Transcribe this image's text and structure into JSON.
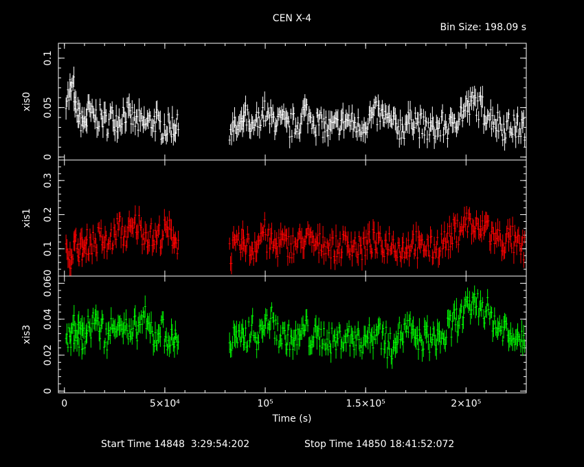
{
  "chart_data": {
    "type": "scatter",
    "title": "CEN X-4",
    "bin_size": "Bin Size: 198.09 s",
    "xlabel": "Time (s)",
    "xlim": [
      -3000,
      230000
    ],
    "x_ticks": [
      {
        "value": 0,
        "label": "0"
      },
      {
        "value": 50000,
        "label": "5×10⁴"
      },
      {
        "value": 100000,
        "label": "10⁵"
      },
      {
        "value": 150000,
        "label": "1.5×10⁵"
      },
      {
        "value": 200000,
        "label": "2×10⁵"
      }
    ],
    "footer": {
      "start": "Start Time 14848  3:29:54:202",
      "stop": "Stop Time 14850 18:41:52:072"
    },
    "observing_gap": [
      57000,
      82000
    ],
    "panels": [
      {
        "ylabel": "xis0",
        "color": "#ffffff",
        "ylim": [
          -0.003,
          0.115
        ],
        "y_ticks": [
          {
            "value": 0,
            "label": "0"
          },
          {
            "value": 0.05,
            "label": "0.05"
          },
          {
            "value": 0.1,
            "label": "0.1"
          }
        ],
        "bins": [
          [
            2000,
            0.062
          ],
          [
            4000,
            0.07
          ],
          [
            6000,
            0.045
          ],
          [
            8000,
            0.038
          ],
          [
            10000,
            0.035
          ],
          [
            12000,
            0.045
          ],
          [
            15000,
            0.04
          ],
          [
            18000,
            0.04
          ],
          [
            21000,
            0.035
          ],
          [
            24000,
            0.04
          ],
          [
            27000,
            0.038
          ],
          [
            30000,
            0.045
          ],
          [
            33000,
            0.04
          ],
          [
            36000,
            0.035
          ],
          [
            39000,
            0.033
          ],
          [
            42000,
            0.035
          ],
          [
            45000,
            0.037
          ],
          [
            48000,
            0.03
          ],
          [
            51000,
            0.03
          ],
          [
            54000,
            0.032
          ],
          [
            56000,
            0.03
          ],
          [
            82000,
            0.03
          ],
          [
            85000,
            0.028
          ],
          [
            88000,
            0.03
          ],
          [
            90000,
            0.04
          ],
          [
            93000,
            0.025
          ],
          [
            96000,
            0.035
          ],
          [
            99000,
            0.045
          ],
          [
            102000,
            0.038
          ],
          [
            105000,
            0.038
          ],
          [
            108000,
            0.035
          ],
          [
            111000,
            0.03
          ],
          [
            114000,
            0.032
          ],
          [
            117000,
            0.035
          ],
          [
            120000,
            0.045
          ],
          [
            123000,
            0.04
          ],
          [
            126000,
            0.035
          ],
          [
            129000,
            0.032
          ],
          [
            132000,
            0.028
          ],
          [
            135000,
            0.03
          ],
          [
            138000,
            0.035
          ],
          [
            141000,
            0.037
          ],
          [
            144000,
            0.033
          ],
          [
            147000,
            0.03
          ],
          [
            150000,
            0.035
          ],
          [
            153000,
            0.04
          ],
          [
            156000,
            0.043
          ],
          [
            159000,
            0.04
          ],
          [
            162000,
            0.035
          ],
          [
            165000,
            0.032
          ],
          [
            168000,
            0.03
          ],
          [
            171000,
            0.035
          ],
          [
            174000,
            0.04
          ],
          [
            177000,
            0.032
          ],
          [
            180000,
            0.028
          ],
          [
            183000,
            0.028
          ],
          [
            186000,
            0.03
          ],
          [
            189000,
            0.032
          ],
          [
            192000,
            0.03
          ],
          [
            195000,
            0.04
          ],
          [
            198000,
            0.045
          ],
          [
            201000,
            0.05
          ],
          [
            204000,
            0.055
          ],
          [
            207000,
            0.05
          ],
          [
            210000,
            0.045
          ],
          [
            213000,
            0.04
          ],
          [
            216000,
            0.035
          ],
          [
            219000,
            0.03
          ],
          [
            222000,
            0.032
          ],
          [
            225000,
            0.03
          ],
          [
            228000,
            0.03
          ]
        ]
      },
      {
        "ylabel": "xis1",
        "color": "#ff0000",
        "ylim": [
          0.02,
          0.36
        ],
        "y_ticks": [
          {
            "value": 0.1,
            "label": "0.1"
          },
          {
            "value": 0.2,
            "label": "0.2"
          },
          {
            "value": 0.3,
            "label": "0.3"
          }
        ],
        "bins": [
          [
            2000,
            0.08
          ],
          [
            4000,
            0.1
          ],
          [
            6000,
            0.11
          ],
          [
            8000,
            0.1
          ],
          [
            10000,
            0.1
          ],
          [
            12000,
            0.12
          ],
          [
            15000,
            0.12
          ],
          [
            18000,
            0.13
          ],
          [
            21000,
            0.11
          ],
          [
            24000,
            0.13
          ],
          [
            27000,
            0.16
          ],
          [
            30000,
            0.14
          ],
          [
            33000,
            0.15
          ],
          [
            36000,
            0.17
          ],
          [
            39000,
            0.15
          ],
          [
            42000,
            0.14
          ],
          [
            45000,
            0.13
          ],
          [
            48000,
            0.14
          ],
          [
            51000,
            0.15
          ],
          [
            54000,
            0.14
          ],
          [
            56000,
            0.12
          ],
          [
            82000,
            0.09
          ],
          [
            85000,
            0.1
          ],
          [
            88000,
            0.11
          ],
          [
            90000,
            0.12
          ],
          [
            93000,
            0.1
          ],
          [
            96000,
            0.12
          ],
          [
            99000,
            0.15
          ],
          [
            102000,
            0.12
          ],
          [
            105000,
            0.11
          ],
          [
            108000,
            0.12
          ],
          [
            111000,
            0.11
          ],
          [
            114000,
            0.11
          ],
          [
            117000,
            0.12
          ],
          [
            120000,
            0.13
          ],
          [
            123000,
            0.12
          ],
          [
            126000,
            0.11
          ],
          [
            129000,
            0.12
          ],
          [
            132000,
            0.11
          ],
          [
            135000,
            0.1
          ],
          [
            138000,
            0.11
          ],
          [
            141000,
            0.12
          ],
          [
            144000,
            0.11
          ],
          [
            147000,
            0.1
          ],
          [
            150000,
            0.11
          ],
          [
            153000,
            0.12
          ],
          [
            156000,
            0.11
          ],
          [
            159000,
            0.11
          ],
          [
            162000,
            0.12
          ],
          [
            165000,
            0.11
          ],
          [
            168000,
            0.1
          ],
          [
            171000,
            0.11
          ],
          [
            174000,
            0.12
          ],
          [
            177000,
            0.1
          ],
          [
            180000,
            0.11
          ],
          [
            183000,
            0.1
          ],
          [
            186000,
            0.11
          ],
          [
            189000,
            0.12
          ],
          [
            192000,
            0.13
          ],
          [
            195000,
            0.15
          ],
          [
            198000,
            0.17
          ],
          [
            201000,
            0.18
          ],
          [
            204000,
            0.16
          ],
          [
            207000,
            0.15
          ],
          [
            210000,
            0.17
          ],
          [
            213000,
            0.14
          ],
          [
            216000,
            0.13
          ],
          [
            219000,
            0.12
          ],
          [
            222000,
            0.13
          ],
          [
            225000,
            0.11
          ],
          [
            228000,
            0.1
          ]
        ]
      },
      {
        "ylabel": "xis3",
        "color": "#00ff00",
        "ylim": [
          -0.001,
          0.064
        ],
        "y_ticks": [
          {
            "value": 0,
            "label": "0"
          },
          {
            "value": 0.02,
            "label": "0.02"
          },
          {
            "value": 0.04,
            "label": "0.04"
          },
          {
            "value": 0.06,
            "label": "0.060"
          }
        ],
        "bins": [
          [
            2000,
            0.03
          ],
          [
            4000,
            0.03
          ],
          [
            6000,
            0.035
          ],
          [
            8000,
            0.03
          ],
          [
            10000,
            0.03
          ],
          [
            12000,
            0.035
          ],
          [
            15000,
            0.04
          ],
          [
            18000,
            0.035
          ],
          [
            21000,
            0.03
          ],
          [
            24000,
            0.035
          ],
          [
            27000,
            0.04
          ],
          [
            30000,
            0.035
          ],
          [
            33000,
            0.03
          ],
          [
            36000,
            0.035
          ],
          [
            39000,
            0.04
          ],
          [
            42000,
            0.035
          ],
          [
            45000,
            0.03
          ],
          [
            48000,
            0.035
          ],
          [
            51000,
            0.03
          ],
          [
            54000,
            0.028
          ],
          [
            56000,
            0.03
          ],
          [
            82000,
            0.025
          ],
          [
            85000,
            0.03
          ],
          [
            88000,
            0.028
          ],
          [
            90000,
            0.03
          ],
          [
            93000,
            0.035
          ],
          [
            96000,
            0.03
          ],
          [
            99000,
            0.035
          ],
          [
            102000,
            0.04
          ],
          [
            105000,
            0.035
          ],
          [
            108000,
            0.03
          ],
          [
            111000,
            0.03
          ],
          [
            114000,
            0.028
          ],
          [
            117000,
            0.03
          ],
          [
            120000,
            0.035
          ],
          [
            123000,
            0.03
          ],
          [
            126000,
            0.03
          ],
          [
            129000,
            0.03
          ],
          [
            132000,
            0.028
          ],
          [
            135000,
            0.028
          ],
          [
            138000,
            0.03
          ],
          [
            141000,
            0.03
          ],
          [
            144000,
            0.03
          ],
          [
            147000,
            0.028
          ],
          [
            150000,
            0.03
          ],
          [
            153000,
            0.03
          ],
          [
            156000,
            0.035
          ],
          [
            159000,
            0.03
          ],
          [
            162000,
            0.025
          ],
          [
            165000,
            0.03
          ],
          [
            168000,
            0.032
          ],
          [
            171000,
            0.035
          ],
          [
            174000,
            0.03
          ],
          [
            177000,
            0.028
          ],
          [
            180000,
            0.03
          ],
          [
            183000,
            0.028
          ],
          [
            186000,
            0.03
          ],
          [
            189000,
            0.03
          ],
          [
            192000,
            0.035
          ],
          [
            195000,
            0.04
          ],
          [
            198000,
            0.042
          ],
          [
            201000,
            0.045
          ],
          [
            204000,
            0.05
          ],
          [
            207000,
            0.048
          ],
          [
            210000,
            0.045
          ],
          [
            213000,
            0.04
          ],
          [
            216000,
            0.035
          ],
          [
            219000,
            0.035
          ],
          [
            222000,
            0.03
          ],
          [
            225000,
            0.032
          ],
          [
            228000,
            0.03
          ]
        ]
      }
    ]
  }
}
